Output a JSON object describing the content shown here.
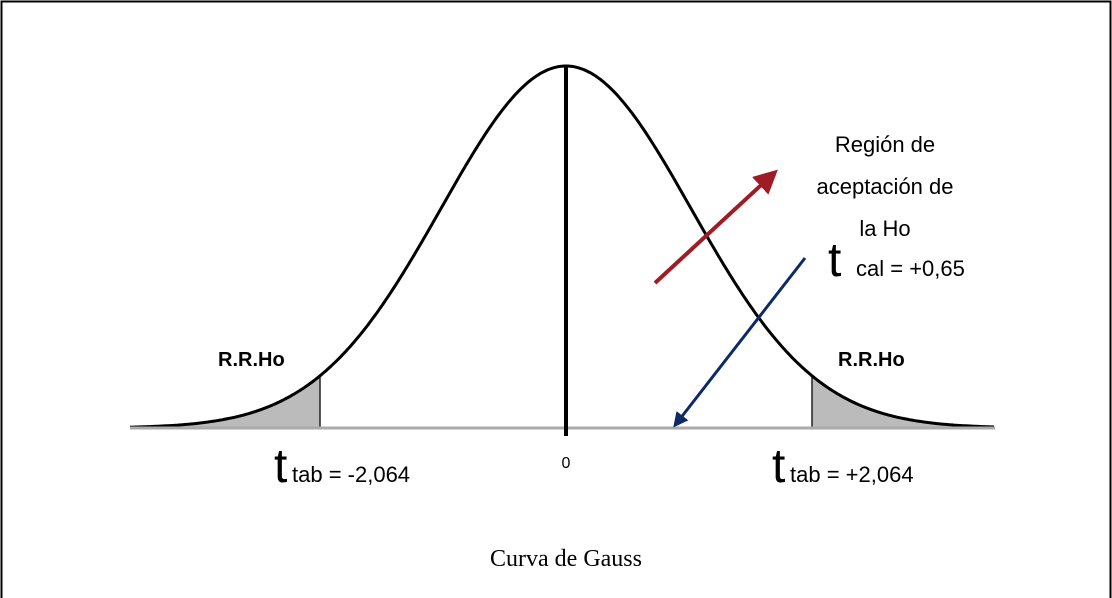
{
  "diagram": {
    "acceptance_region_label": [
      "Región de",
      "aceptación de",
      "la Ho"
    ],
    "t_cal": {
      "symbol": "t",
      "rest": "cal = +0,65"
    },
    "rejection_left": "R.R.Ho",
    "rejection_right": "R.R.Ho",
    "t_tab_left": {
      "symbol": "t",
      "rest": "tab = -2,064"
    },
    "t_tab_right": {
      "symbol": "t",
      "rest": "tab = +2,064"
    },
    "center_label": "0",
    "caption": "Curva de Gauss"
  }
}
